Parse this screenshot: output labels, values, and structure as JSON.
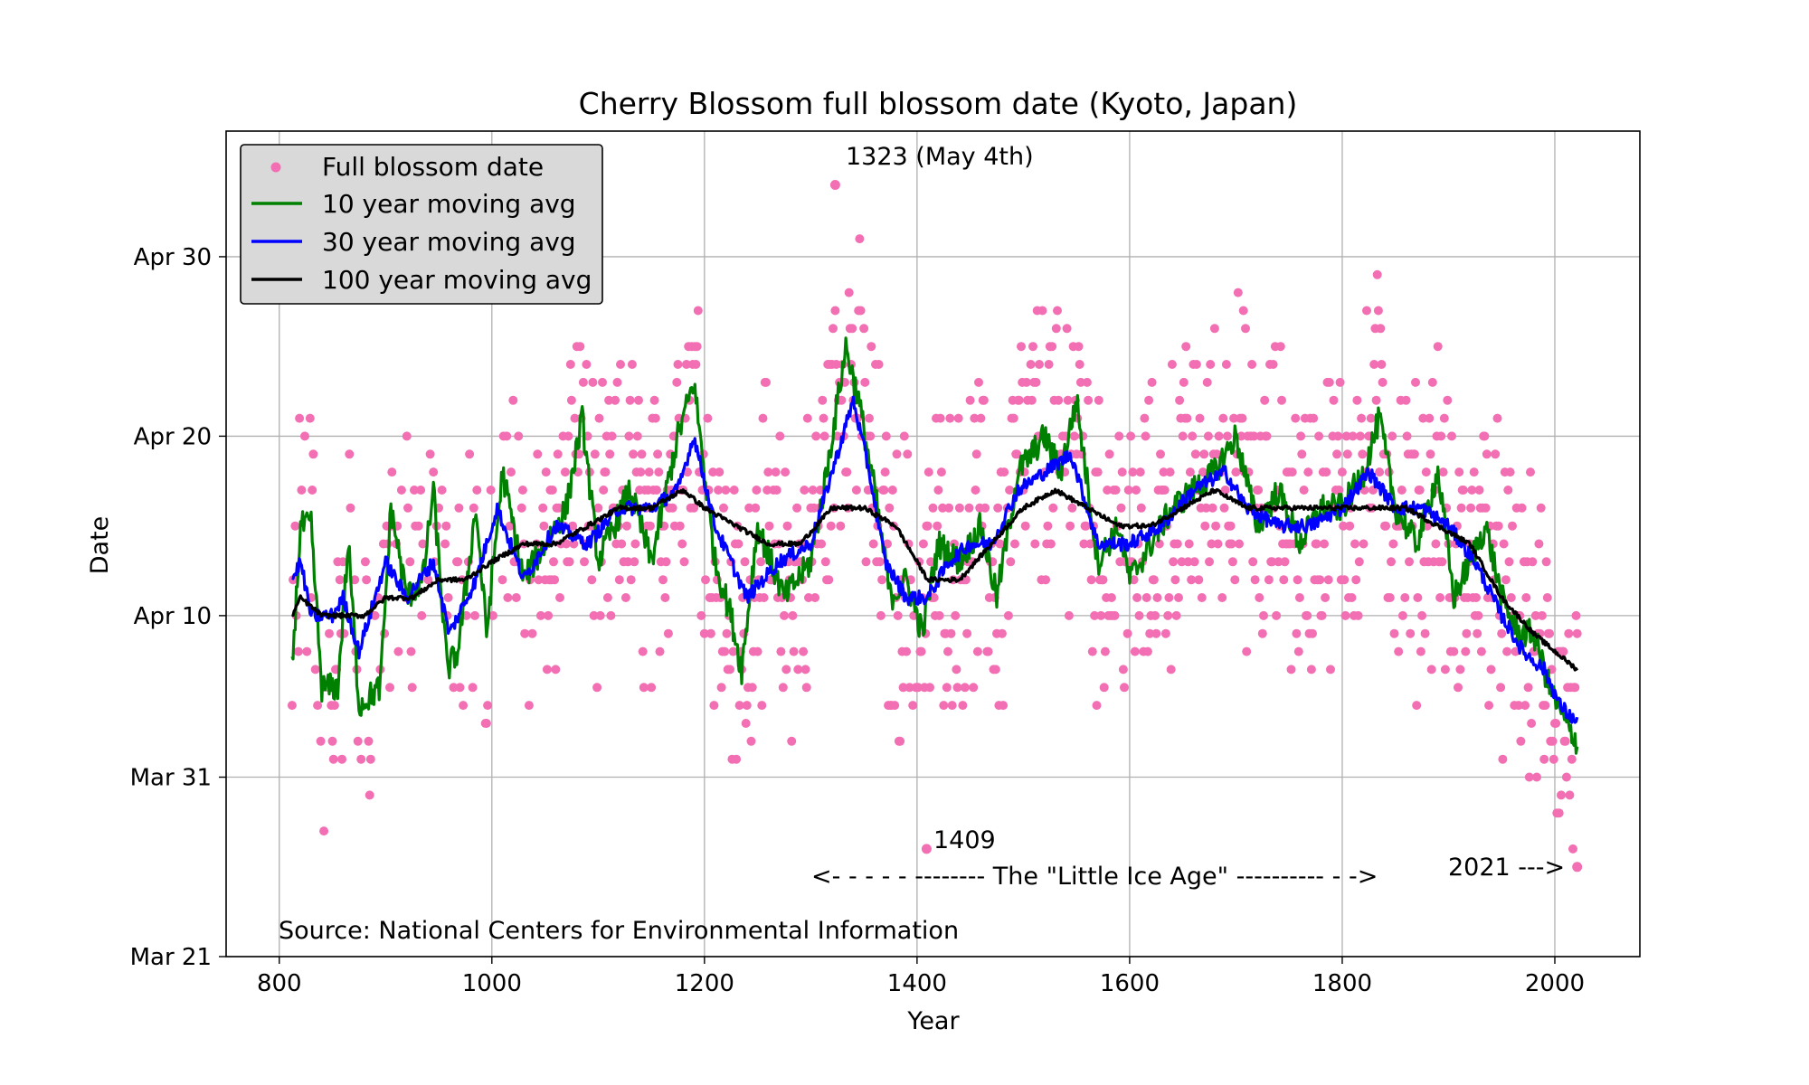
{
  "chart_data": {
    "type": "line",
    "title": "Cherry Blossom full blossom date (Kyoto, Japan)",
    "xlabel": "Year",
    "ylabel": "Date",
    "xlim": [
      750,
      2080
    ],
    "ylim": [
      "Mar 21",
      "May 6"
    ],
    "x_ticks": [
      800,
      1000,
      1200,
      1400,
      1600,
      1800,
      2000
    ],
    "y_ticks": [
      "Mar 21",
      "Mar 31",
      "Apr 10",
      "Apr 20",
      "Apr 30"
    ],
    "grid": true,
    "legend_placement": "top-left",
    "legend": [
      {
        "label": "Full blossom date",
        "color": "#f26fb4",
        "kind": "marker"
      },
      {
        "label": "10 year moving avg",
        "color": "#008000",
        "kind": "line"
      },
      {
        "label": "30 year moving avg",
        "color": "#0000ff",
        "kind": "line"
      },
      {
        "label": "100 year moving avg",
        "color": "#000000",
        "kind": "line"
      }
    ],
    "scatter_color": "#f26fb4",
    "series": [
      {
        "name": "Full blossom date",
        "type": "scatter",
        "color": "#f26fb4",
        "year_range": [
          812,
          2021
        ],
        "note_points": [
          {
            "year": 1323,
            "date": "May 4"
          },
          {
            "year": 1409,
            "date": "Mar 27"
          },
          {
            "year": 2021,
            "date": "Mar 26"
          }
        ]
      },
      {
        "name": "10 year moving avg",
        "type": "line",
        "color": "#008000",
        "anchors": [
          [
            812,
            "Apr 7"
          ],
          [
            820,
            "Apr 15"
          ],
          [
            830,
            "Apr 15"
          ],
          [
            840,
            "Apr 6"
          ],
          [
            855,
            "Apr 6"
          ],
          [
            865,
            "Apr 14"
          ],
          [
            875,
            "Apr 5"
          ],
          [
            895,
            "Apr 6"
          ],
          [
            905,
            "Apr 16"
          ],
          [
            920,
            "Apr 11"
          ],
          [
            935,
            "Apr 12"
          ],
          [
            945,
            "Apr 17"
          ],
          [
            958,
            "Apr 7"
          ],
          [
            968,
            "Apr 8"
          ],
          [
            985,
            "Apr 16"
          ],
          [
            995,
            "Apr 9"
          ],
          [
            1010,
            "Apr 18"
          ],
          [
            1030,
            "Apr 12"
          ],
          [
            1050,
            "Apr 14"
          ],
          [
            1070,
            "Apr 16"
          ],
          [
            1085,
            "Apr 21"
          ],
          [
            1100,
            "Apr 13"
          ],
          [
            1130,
            "Apr 17"
          ],
          [
            1150,
            "Apr 13"
          ],
          [
            1175,
            "Apr 20"
          ],
          [
            1190,
            "Apr 23"
          ],
          [
            1210,
            "Apr 13"
          ],
          [
            1225,
            "Apr 10"
          ],
          [
            1235,
            "Apr 7"
          ],
          [
            1250,
            "Apr 15"
          ],
          [
            1275,
            "Apr 11"
          ],
          [
            1300,
            "Apr 13"
          ],
          [
            1315,
            "Apr 18"
          ],
          [
            1333,
            "Apr 25"
          ],
          [
            1345,
            "Apr 22"
          ],
          [
            1360,
            "Apr 17"
          ],
          [
            1375,
            "Apr 11"
          ],
          [
            1390,
            "Apr 12"
          ],
          [
            1405,
            "Apr 9"
          ],
          [
            1420,
            "Apr 14"
          ],
          [
            1440,
            "Apr 13"
          ],
          [
            1460,
            "Apr 15"
          ],
          [
            1475,
            "Apr 11"
          ],
          [
            1495,
            "Apr 18"
          ],
          [
            1520,
            "Apr 20"
          ],
          [
            1535,
            "Apr 18"
          ],
          [
            1550,
            "Apr 22"
          ],
          [
            1570,
            "Apr 13"
          ],
          [
            1590,
            "Apr 15"
          ],
          [
            1600,
            "Apr 12"
          ],
          [
            1620,
            "Apr 14"
          ],
          [
            1640,
            "Apr 16"
          ],
          [
            1660,
            "Apr 17"
          ],
          [
            1680,
            "Apr 18"
          ],
          [
            1700,
            "Apr 20"
          ],
          [
            1720,
            "Apr 15"
          ],
          [
            1740,
            "Apr 17"
          ],
          [
            1760,
            "Apr 14"
          ],
          [
            1780,
            "Apr 16"
          ],
          [
            1800,
            "Apr 16"
          ],
          [
            1820,
            "Apr 18"
          ],
          [
            1835,
            "Apr 21"
          ],
          [
            1850,
            "Apr 16"
          ],
          [
            1870,
            "Apr 14"
          ],
          [
            1890,
            "Apr 18"
          ],
          [
            1905,
            "Apr 11"
          ],
          [
            1920,
            "Apr 13"
          ],
          [
            1935,
            "Apr 15"
          ],
          [
            1950,
            "Apr 11"
          ],
          [
            1965,
            "Apr 9"
          ],
          [
            1980,
            "Apr 9"
          ],
          [
            1995,
            "Apr 6"
          ],
          [
            2010,
            "Apr 4"
          ],
          [
            2021,
            "Apr 3"
          ]
        ]
      },
      {
        "name": "30 year moving avg",
        "type": "line",
        "color": "#0000ff",
        "anchors": [
          [
            812,
            "Apr 12"
          ],
          [
            820,
            "Apr 13"
          ],
          [
            830,
            "Apr 10"
          ],
          [
            850,
            "Apr 10"
          ],
          [
            860,
            "Apr 11"
          ],
          [
            875,
            "Apr 8"
          ],
          [
            900,
            "Apr 13"
          ],
          [
            920,
            "Apr 11"
          ],
          [
            945,
            "Apr 13"
          ],
          [
            960,
            "Apr 9"
          ],
          [
            985,
            "Apr 12"
          ],
          [
            1005,
            "Apr 16"
          ],
          [
            1030,
            "Apr 12"
          ],
          [
            1060,
            "Apr 15"
          ],
          [
            1090,
            "Apr 14"
          ],
          [
            1120,
            "Apr 16"
          ],
          [
            1150,
            "Apr 16"
          ],
          [
            1175,
            "Apr 17"
          ],
          [
            1190,
            "Apr 20"
          ],
          [
            1210,
            "Apr 15"
          ],
          [
            1240,
            "Apr 11"
          ],
          [
            1270,
            "Apr 13"
          ],
          [
            1300,
            "Apr 14"
          ],
          [
            1320,
            "Apr 18"
          ],
          [
            1340,
            "Apr 22"
          ],
          [
            1355,
            "Apr 18"
          ],
          [
            1370,
            "Apr 13"
          ],
          [
            1390,
            "Apr 11"
          ],
          [
            1410,
            "Apr 11"
          ],
          [
            1430,
            "Apr 13"
          ],
          [
            1450,
            "Apr 14"
          ],
          [
            1470,
            "Apr 14"
          ],
          [
            1495,
            "Apr 17"
          ],
          [
            1520,
            "Apr 18"
          ],
          [
            1545,
            "Apr 19"
          ],
          [
            1570,
            "Apr 14"
          ],
          [
            1600,
            "Apr 14"
          ],
          [
            1630,
            "Apr 15"
          ],
          [
            1660,
            "Apr 17"
          ],
          [
            1690,
            "Apr 18"
          ],
          [
            1710,
            "Apr 16"
          ],
          [
            1740,
            "Apr 15"
          ],
          [
            1770,
            "Apr 15"
          ],
          [
            1800,
            "Apr 16"
          ],
          [
            1825,
            "Apr 18"
          ],
          [
            1850,
            "Apr 16"
          ],
          [
            1875,
            "Apr 16"
          ],
          [
            1900,
            "Apr 15"
          ],
          [
            1925,
            "Apr 13"
          ],
          [
            1950,
            "Apr 10"
          ],
          [
            1970,
            "Apr 8"
          ],
          [
            1990,
            "Apr 7"
          ],
          [
            2005,
            "Apr 5"
          ],
          [
            2021,
            "Apr 4"
          ]
        ]
      },
      {
        "name": "100 year moving avg",
        "type": "line",
        "color": "#000000",
        "anchors": [
          [
            812,
            "Apr 10"
          ],
          [
            820,
            "Apr 11"
          ],
          [
            840,
            "Apr 10"
          ],
          [
            860,
            "Apr 10"
          ],
          [
            880,
            "Apr 10"
          ],
          [
            900,
            "Apr 11"
          ],
          [
            925,
            "Apr 11"
          ],
          [
            950,
            "Apr 12"
          ],
          [
            975,
            "Apr 12"
          ],
          [
            1000,
            "Apr 13"
          ],
          [
            1030,
            "Apr 14"
          ],
          [
            1060,
            "Apr 14"
          ],
          [
            1090,
            "Apr 15"
          ],
          [
            1120,
            "Apr 16"
          ],
          [
            1150,
            "Apr 16"
          ],
          [
            1180,
            "Apr 17"
          ],
          [
            1200,
            "Apr 16"
          ],
          [
            1230,
            "Apr 15"
          ],
          [
            1260,
            "Apr 14"
          ],
          [
            1290,
            "Apr 14"
          ],
          [
            1320,
            "Apr 16"
          ],
          [
            1350,
            "Apr 16"
          ],
          [
            1380,
            "Apr 15"
          ],
          [
            1410,
            "Apr 12"
          ],
          [
            1440,
            "Apr 12"
          ],
          [
            1470,
            "Apr 14"
          ],
          [
            1500,
            "Apr 16"
          ],
          [
            1530,
            "Apr 17"
          ],
          [
            1560,
            "Apr 16"
          ],
          [
            1590,
            "Apr 15"
          ],
          [
            1620,
            "Apr 15"
          ],
          [
            1650,
            "Apr 16"
          ],
          [
            1680,
            "Apr 17"
          ],
          [
            1710,
            "Apr 16"
          ],
          [
            1740,
            "Apr 16"
          ],
          [
            1770,
            "Apr 16"
          ],
          [
            1800,
            "Apr 16"
          ],
          [
            1830,
            "Apr 16"
          ],
          [
            1860,
            "Apr 16"
          ],
          [
            1890,
            "Apr 15"
          ],
          [
            1920,
            "Apr 14"
          ],
          [
            1950,
            "Apr 11"
          ],
          [
            1980,
            "Apr 9"
          ],
          [
            2000,
            "Apr 8"
          ],
          [
            2021,
            "Apr 7"
          ]
        ]
      }
    ],
    "annotations": [
      {
        "text": "1323 (May 4th)",
        "year": 1323,
        "date": "May 4"
      },
      {
        "text": "1409",
        "year": 1409,
        "date": "Mar 27"
      },
      {
        "text": "<- - - - - -------- The \"Little Ice Age\" ---------- - ->",
        "year_range": [
          1300,
          1850
        ]
      },
      {
        "text": "2021 --->",
        "year": 2021,
        "date": "Mar 26"
      },
      {
        "text": "Source: National Centers for Environmental Information"
      }
    ]
  }
}
